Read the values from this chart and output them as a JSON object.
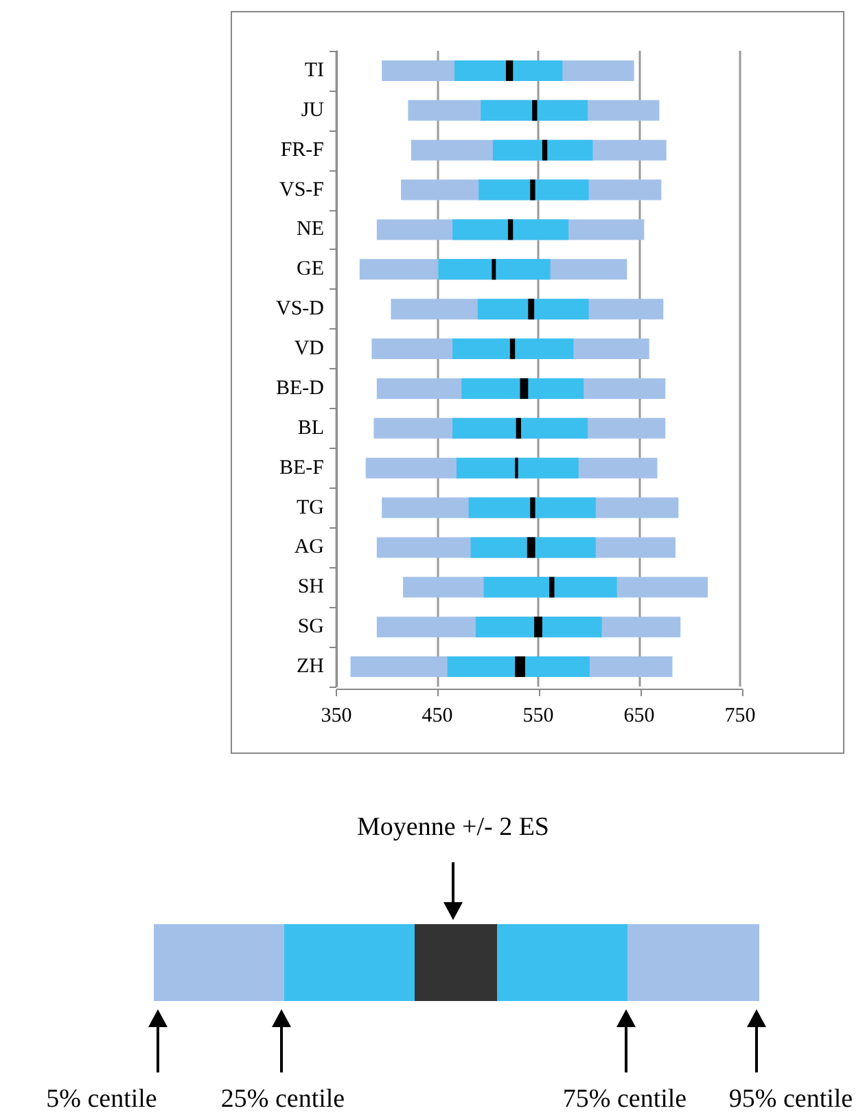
{
  "chart_data": {
    "type": "bar",
    "orientation": "horizontal",
    "categories": [
      "TI",
      "JU",
      "FR-F",
      "VS-F",
      "NE",
      "GE",
      "VS-D",
      "VD",
      "BE-D",
      "BL",
      "BE-F",
      "TG",
      "AG",
      "SH",
      "SG",
      "ZH"
    ],
    "series": [
      {
        "color": "#a3c1e8",
        "base": [
          395,
          421,
          424,
          414,
          390,
          373,
          404,
          385,
          390,
          387,
          379,
          395,
          390,
          416,
          390,
          364
        ],
        "values": [
          250,
          249,
          253,
          258,
          265,
          265,
          270,
          275,
          286,
          289,
          289,
          294,
          296,
          302,
          301,
          319
        ]
      },
      {
        "color": "#3bbfef",
        "base": [
          467,
          493,
          505,
          491,
          465,
          451,
          490,
          465,
          474,
          465,
          469,
          481,
          483,
          496,
          488,
          460
        ],
        "values": [
          107,
          106,
          99,
          109,
          115,
          111,
          110,
          120,
          121,
          134,
          121,
          126,
          124,
          132,
          125,
          141
        ]
      },
      {
        "color": "#000000",
        "base": [
          518,
          544,
          554,
          542,
          520,
          504,
          540,
          522,
          532,
          528,
          527,
          542,
          539,
          561,
          546,
          527
        ],
        "values": [
          7,
          5,
          5,
          5,
          5,
          4,
          6,
          5,
          8,
          5,
          3,
          5,
          8,
          5,
          8,
          10
        ]
      }
    ],
    "xlim": [
      350,
      750
    ],
    "xticks": [
      350,
      450,
      550,
      650,
      750
    ],
    "grid": "x",
    "annotations": [
      "Moyenne +/- 2 ES",
      "5% centile",
      "25% centile",
      "75% centile",
      "95% centile"
    ]
  }
}
